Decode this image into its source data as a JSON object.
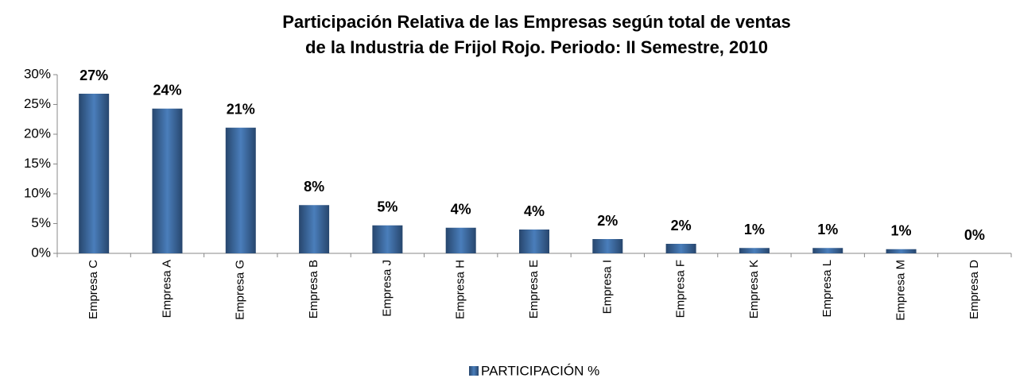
{
  "chart_data": {
    "type": "bar",
    "title": [
      "Participación Relativa de las Empresas según total de ventas",
      "de la Industria de Frijol Rojo. Periodo: II Semestre, 2010"
    ],
    "categories": [
      "Empresa C",
      "Empresa A",
      "Empresa G",
      "Empresa B",
      "Empresa J",
      "Empresa H",
      "Empresa E",
      "Empresa I",
      "Empresa F",
      "Empresa K",
      "Empresa L",
      "Empresa M",
      "Empresa D"
    ],
    "series": [
      {
        "name": "PARTICIPACIÓN %",
        "color": "#4a7ebb",
        "values": [
          26.8,
          24.3,
          21.1,
          8.1,
          4.7,
          4.3,
          4.0,
          2.4,
          1.6,
          0.9,
          0.9,
          0.7,
          0
        ],
        "value_labels": [
          "27%",
          "24%",
          "21%",
          "8%",
          "5%",
          "4%",
          "4%",
          "2%",
          "2%",
          "1%",
          "1%",
          "1%",
          "0%"
        ]
      }
    ],
    "ylim": [
      0,
      30
    ],
    "yticks": [
      {
        "value": 0,
        "label": "0%"
      },
      {
        "value": 5,
        "label": "5%"
      },
      {
        "value": 10,
        "label": "10%"
      },
      {
        "value": 15,
        "label": "15%"
      },
      {
        "value": 20,
        "label": "20%"
      },
      {
        "value": 25,
        "label": "25%"
      },
      {
        "value": 30,
        "label": "30%"
      }
    ],
    "legend": "bottom"
  }
}
